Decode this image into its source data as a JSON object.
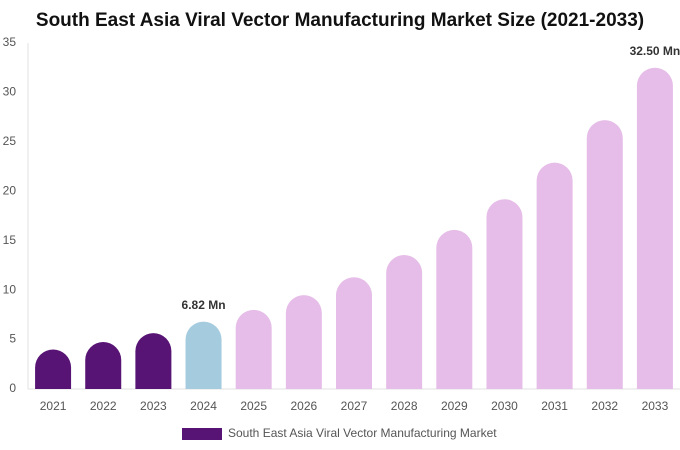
{
  "chart_data": {
    "type": "bar",
    "title": "South East Asia Viral Vector Manufacturing Market Size (2021-2033)",
    "categories": [
      "2021",
      "2022",
      "2023",
      "2024",
      "2025",
      "2026",
      "2027",
      "2028",
      "2029",
      "2030",
      "2031",
      "2032",
      "2033"
    ],
    "series": [
      {
        "name": "South East Asia Viral Vector Manufacturing Market",
        "color": "#581474",
        "colors": [
          "#581474",
          "#581474",
          "#581474",
          "#a5cbdf",
          "#e6bde8",
          "#e6bde8",
          "#e6bde8",
          "#e6bde8",
          "#e6bde8",
          "#e6bde8",
          "#e6bde8",
          "#e6bde8",
          "#e6bde8"
        ],
        "values": [
          4.0,
          4.75,
          5.65,
          6.82,
          8.0,
          9.5,
          11.3,
          13.55,
          16.1,
          19.2,
          22.9,
          27.2,
          32.5
        ],
        "value_labels": [
          null,
          null,
          null,
          "6.82 Mn",
          null,
          null,
          null,
          null,
          null,
          null,
          null,
          null,
          "32.50 Mn"
        ]
      }
    ],
    "ylim": [
      0,
      35
    ],
    "yticks": [
      0,
      5,
      10,
      15,
      20,
      25,
      30,
      35
    ],
    "grid": false,
    "legend": "bottom"
  }
}
